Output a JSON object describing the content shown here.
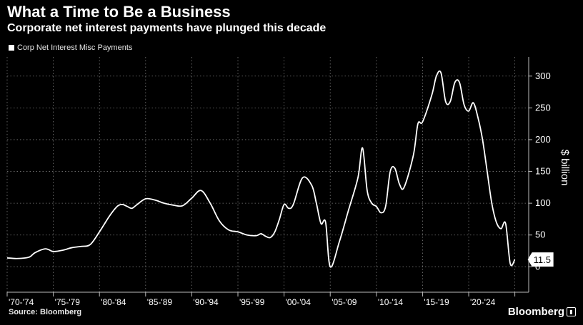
{
  "header": {
    "title": "What a Time to Be a Business",
    "subtitle": "Corporate net interest payments have plunged this decade"
  },
  "legend": {
    "label": "Corp Net Interest Misc Payments"
  },
  "footer": {
    "source": "Source: Bloomberg",
    "brand": "Bloomberg",
    "brand_icon": "bloomberg-terminal-icon"
  },
  "colors": {
    "background": "#000000",
    "line": "#ffffff",
    "grid": "#7a7a7a"
  },
  "chart_data": {
    "type": "line",
    "title": "What a Time to Be a Business",
    "subtitle": "Corporate net interest payments have plunged this decade",
    "xlabel": "",
    "ylabel": "$ billion",
    "ylim": [
      -40,
      330
    ],
    "xlim": [
      1970,
      2026.5
    ],
    "grid": true,
    "legend_position": "top-left",
    "y_ticks": [
      0,
      50,
      100,
      150,
      200,
      250,
      300
    ],
    "x_tick_labels": [
      "'70-'74",
      "'75-'79",
      "'80-'84",
      "'85-'89",
      "'90-'94",
      "'95-'99",
      "'00-'04",
      "'05-'09",
      "'10-'14",
      "'15-'19",
      "'20-'24"
    ],
    "last_value_label": "11.5",
    "series": [
      {
        "name": "Corp Net Interest Misc Payments",
        "x": [
          1970,
          1971,
          1972,
          1972.5,
          1973,
          1974,
          1974.5,
          1975,
          1976,
          1977,
          1978,
          1979,
          1980,
          1981,
          1981.5,
          1982,
          1982.5,
          1983,
          1983.5,
          1984,
          1985,
          1986,
          1987,
          1988,
          1989,
          1990,
          1991,
          1992,
          1993,
          1994,
          1995,
          1996,
          1997,
          1997.5,
          1998,
          1998.5,
          1999,
          1999.5,
          2000,
          2000.5,
          2001,
          2002,
          2003,
          2003.5,
          2004,
          2004.5,
          2005,
          2006,
          2007,
          2008,
          2008.5,
          2009,
          2009.5,
          2010,
          2010.5,
          2011,
          2011.5,
          2012,
          2012.5,
          2013,
          2014,
          2014.5,
          2015,
          2016,
          2016.5,
          2017,
          2017.5,
          2018,
          2018.5,
          2019,
          2019.5,
          2020,
          2020.5,
          2021,
          2021.5,
          2022,
          2022.5,
          2023,
          2023.5,
          2024,
          2024.5,
          2025
        ],
        "values": [
          14,
          13,
          14,
          16,
          22,
          28,
          27,
          24,
          26,
          30,
          32,
          35,
          55,
          78,
          88,
          96,
          98,
          95,
          92,
          97,
          107,
          105,
          100,
          97,
          96,
          108,
          120,
          100,
          72,
          58,
          55,
          50,
          49,
          52,
          48,
          46,
          55,
          75,
          98,
          92,
          98,
          140,
          128,
          100,
          68,
          70,
          0,
          40,
          90,
          140,
          187,
          120,
          100,
          95,
          85,
          95,
          150,
          155,
          130,
          125,
          175,
          225,
          228,
          270,
          300,
          305,
          260,
          260,
          290,
          290,
          255,
          245,
          258,
          235,
          200,
          150,
          100,
          70,
          60,
          68,
          5,
          11.5
        ]
      }
    ]
  }
}
